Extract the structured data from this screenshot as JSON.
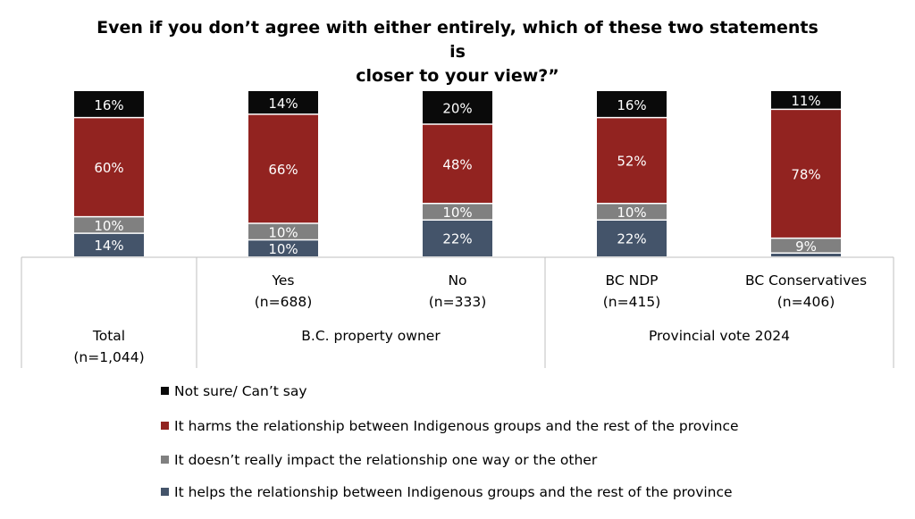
{
  "title_lines": [
    "Even if you don’t agree with either entirely, which of these two statements is",
    "closer to your view?”"
  ],
  "colors": {
    "not_sure": "#0a0a0a",
    "harms": "#922320",
    "no_impact": "#808080",
    "helps": "#44546a"
  },
  "chart_data": {
    "type": "bar",
    "stacked": true,
    "orientation": "vertical",
    "title": "Even if you don’t agree with either entirely, which of these two statements is closer to your view?”",
    "categories": [
      "Total (n=1,044)",
      "Yes (n=688)",
      "No (n=333)",
      "BC NDP (n=415)",
      "BC Conservatives (n=406)"
    ],
    "category_labels": [
      {
        "lines": [
          "Total",
          "(n=1,044)"
        ]
      },
      {
        "lines": [
          "Yes",
          "(n=688)"
        ]
      },
      {
        "lines": [
          "No",
          "(n=333)"
        ]
      },
      {
        "lines": [
          "BC NDP",
          "(n=415)"
        ]
      },
      {
        "lines": [
          "BC Conservatives",
          "(n=406)"
        ]
      }
    ],
    "groups": [
      {
        "label": "B.C. property owner",
        "categories": [
          1,
          2
        ]
      },
      {
        "label": "Provincial vote 2024",
        "categories": [
          3,
          4
        ]
      }
    ],
    "series": [
      {
        "name": "It helps the relationship between Indigenous groups and the rest of the province",
        "color_key": "helps",
        "values": [
          14,
          10,
          22,
          22,
          2
        ],
        "labels": [
          "14%",
          "10%",
          "22%",
          "22%",
          ""
        ]
      },
      {
        "name": "It doesn’t really impact the relationship one way or the other",
        "color_key": "no_impact",
        "values": [
          10,
          10,
          10,
          10,
          9
        ],
        "labels": [
          "10%",
          "10%",
          "10%",
          "10%",
          "9%"
        ]
      },
      {
        "name": "It harms the relationship between Indigenous groups and the rest of the province",
        "color_key": "harms",
        "values": [
          60,
          66,
          48,
          52,
          78
        ],
        "labels": [
          "60%",
          "66%",
          "48%",
          "52%",
          "78%"
        ]
      },
      {
        "name": "Not sure/ Can’t say",
        "color_key": "not_sure",
        "values": [
          16,
          14,
          20,
          16,
          11
        ],
        "labels": [
          "16%",
          "14%",
          "20%",
          "16%",
          "11%"
        ]
      }
    ],
    "ylim": [
      0,
      100
    ],
    "legend_position": "bottom"
  },
  "legend": [
    {
      "label": "Not sure/ Can’t say",
      "color_key": "not_sure"
    },
    {
      "label": "It harms the relationship between Indigenous groups and the rest of the province",
      "color_key": "harms"
    },
    {
      "label": "It doesn’t really impact the relationship one way or the other",
      "color_key": "no_impact"
    },
    {
      "label": "It helps the relationship between Indigenous groups and the rest of the province",
      "color_key": "helps"
    }
  ]
}
